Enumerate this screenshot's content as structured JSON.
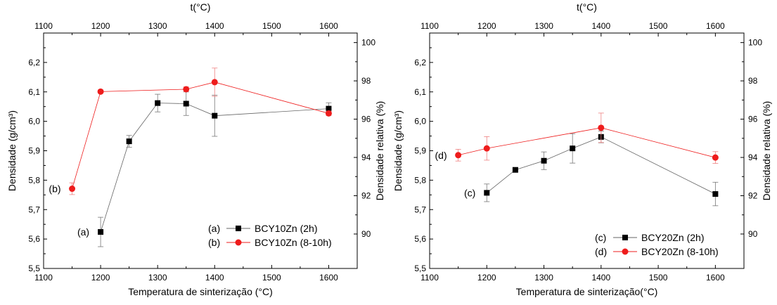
{
  "chart_data": [
    {
      "type": "scatter",
      "id": "left",
      "top_axis_label": "t(°C)",
      "xlabel": "Temperatura de sinterização (°C)",
      "ylabel": "Densidade (g/cm³)",
      "ylabel_right": "Densidade relativa (%)",
      "xlim": [
        1100,
        1650
      ],
      "ylim": [
        5.5,
        6.3
      ],
      "ylim_right": [
        88.2,
        100.5
      ],
      "xticks": [
        1100,
        1200,
        1300,
        1400,
        1500,
        1600
      ],
      "top_xticks": [
        1100,
        1200,
        1300,
        1400,
        1500,
        1600
      ],
      "yticks": [
        "5,5",
        "5,6",
        "5,7",
        "5,8",
        "5,9",
        "6,0",
        "6,1",
        "6,2"
      ],
      "yticks_right": [
        90,
        92,
        94,
        96,
        98,
        100
      ],
      "series": [
        {
          "name": "BCY10Zn (2h)",
          "tag": "(a)",
          "color": "#000000",
          "marker": "square",
          "x": [
            1200,
            1250,
            1300,
            1350,
            1400,
            1600
          ],
          "y": [
            5.624,
            5.932,
            6.062,
            6.06,
            6.019,
            6.043
          ],
          "err": [
            0.05,
            0.02,
            0.03,
            0.04,
            0.07,
            0.02
          ]
        },
        {
          "name": "BCY10Zn (8-10h)",
          "tag": "(b)",
          "color": "#ee1c1c",
          "marker": "circle",
          "x": [
            1150,
            1200,
            1350,
            1400,
            1600
          ],
          "y": [
            5.771,
            6.101,
            6.109,
            6.133,
            6.027
          ],
          "err": [
            0.02,
            0.005,
            0.008,
            0.048,
            0.008
          ]
        }
      ],
      "labels": [
        {
          "text": "(a)",
          "x": 1200,
          "y": 5.624,
          "side": "left"
        },
        {
          "text": "(b)",
          "x": 1150,
          "y": 5.771,
          "side": "left"
        }
      ],
      "legend": "bottom-right"
    },
    {
      "type": "scatter",
      "id": "right",
      "top_axis_label": "t(°C)",
      "xlabel": "Temperatura de sinterização(°C)",
      "ylabel": "Densidade (g/cm³)",
      "ylabel_right": "Densidade relativa (%)",
      "xlim": [
        1100,
        1650
      ],
      "ylim": [
        5.5,
        6.3
      ],
      "ylim_right": [
        88.2,
        100.5
      ],
      "xticks": [
        1100,
        1200,
        1300,
        1400,
        1500,
        1600
      ],
      "top_xticks": [
        1100,
        1200,
        1300,
        1400,
        1500,
        1600
      ],
      "yticks": [
        "5,5",
        "5,6",
        "5,7",
        "5,8",
        "5,9",
        "6,0",
        "6,1",
        "6,2"
      ],
      "yticks_right": [
        90,
        92,
        94,
        96,
        98,
        100
      ],
      "series": [
        {
          "name": "BCY20Zn (2h)",
          "tag": "(c)",
          "color": "#000000",
          "marker": "square",
          "x": [
            1200,
            1250,
            1300,
            1350,
            1400,
            1600
          ],
          "y": [
            5.757,
            5.835,
            5.866,
            5.908,
            5.947,
            5.753
          ],
          "err": [
            0.03,
            0.005,
            0.03,
            0.05,
            0.02,
            0.04
          ]
        },
        {
          "name": "BCY20Zn (8-10h)",
          "tag": "(d)",
          "color": "#ee1c1c",
          "marker": "circle",
          "x": [
            1150,
            1200,
            1400,
            1600
          ],
          "y": [
            5.885,
            5.908,
            5.978,
            5.877
          ],
          "err": [
            0.02,
            0.04,
            0.05,
            0.02
          ]
        }
      ],
      "labels": [
        {
          "text": "(c)",
          "x": 1200,
          "y": 5.757,
          "side": "left"
        },
        {
          "text": "(d)",
          "x": 1150,
          "y": 5.885,
          "side": "left"
        }
      ],
      "legend": "bottom-right"
    }
  ]
}
